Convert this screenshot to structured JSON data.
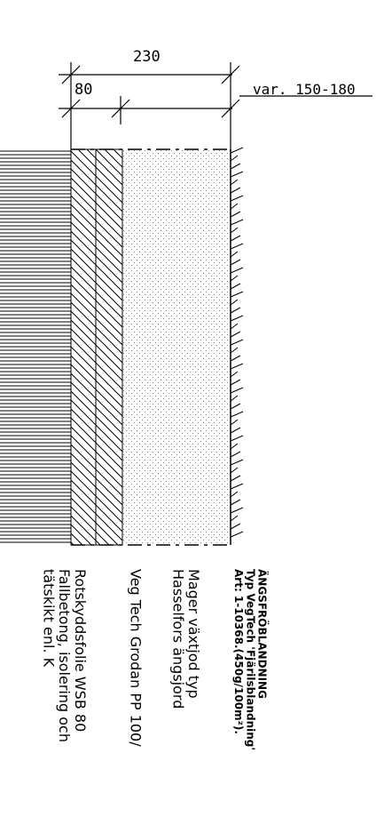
{
  "dimensions": {
    "total": "230",
    "first": "80",
    "variable": "var. 150-180"
  },
  "layers": [
    {
      "key": "paving",
      "hatch": "horizontal"
    },
    {
      "key": "membrane",
      "hatch": "diagonal"
    },
    {
      "key": "drain",
      "hatch": "diagonal"
    },
    {
      "key": "soil",
      "hatch": "dots"
    },
    {
      "key": "grass",
      "hatch": "grass"
    }
  ],
  "labels": {
    "seed_mix": {
      "line1": "ÄNGSFRÖBLANDNING",
      "line2": "Typ VegTech 'Fjärilsblandning'",
      "line3": "Art: 1-10368.(450g/100m²)."
    },
    "soil": {
      "line1": "Mager växtjod typ",
      "line2": "Hasselfors ängsjord"
    },
    "drain": {
      "line1": "Veg Tech Grodan PP 100/"
    },
    "membrane": {
      "line1": "Rotskyddsfolie WSB 80",
      "line2": "Fallbetong, isolering och",
      "line3": "tätskikt enl. K"
    }
  }
}
